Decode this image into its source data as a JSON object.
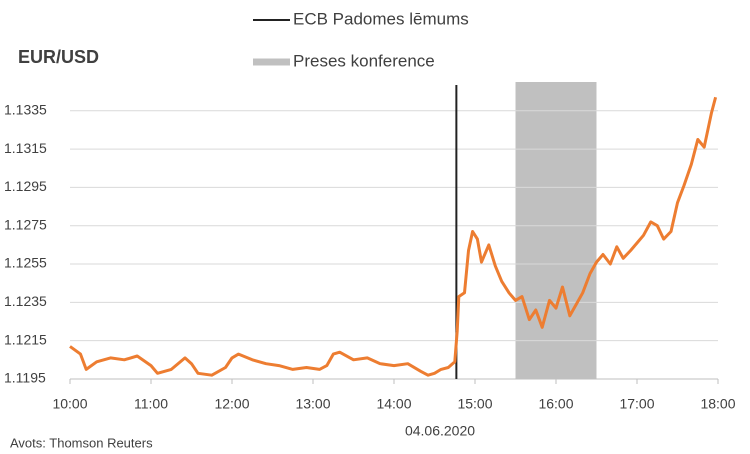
{
  "chart_data": {
    "type": "line",
    "title": "EUR/USD",
    "xlabel": "04.06.2020",
    "source": "Avots: Thomson Reuters",
    "x": [
      10,
      10.13,
      10.2,
      10.33,
      10.5,
      10.67,
      10.83,
      11,
      11.08,
      11.25,
      11.42,
      11.5,
      11.58,
      11.75,
      11.92,
      12,
      12.08,
      12.25,
      12.42,
      12.58,
      12.75,
      12.92,
      13.08,
      13.17,
      13.25,
      13.33,
      13.5,
      13.67,
      13.83,
      14,
      14.17,
      14.33,
      14.42,
      14.5,
      14.58,
      14.67,
      14.75,
      14.78,
      14.8,
      14.87,
      14.92,
      14.97,
      15.03,
      15.08,
      15.17,
      15.25,
      15.33,
      15.42,
      15.5,
      15.58,
      15.67,
      15.75,
      15.83,
      15.92,
      16,
      16.08,
      16.17,
      16.25,
      16.33,
      16.42,
      16.5,
      16.58,
      16.67,
      16.75,
      16.83,
      16.92,
      17,
      17.08,
      17.17,
      17.25,
      17.33,
      17.42,
      17.5,
      17.58,
      17.67,
      17.75,
      17.83,
      17.92,
      17.97
    ],
    "series": [
      {
        "color": "#ed7d31",
        "values": [
          1.1212,
          1.1208,
          1.12,
          1.1204,
          1.1206,
          1.1205,
          1.1207,
          1.1202,
          1.1198,
          1.12,
          1.1206,
          1.1203,
          1.1198,
          1.1197,
          1.1201,
          1.1206,
          1.1208,
          1.1205,
          1.1203,
          1.1202,
          1.12,
          1.1201,
          1.12,
          1.1202,
          1.1208,
          1.1209,
          1.1205,
          1.1206,
          1.1203,
          1.1202,
          1.1203,
          1.1199,
          1.1197,
          1.1198,
          1.12,
          1.1201,
          1.1204,
          1.122,
          1.1238,
          1.124,
          1.1262,
          1.1272,
          1.1268,
          1.1256,
          1.1265,
          1.1254,
          1.1246,
          1.124,
          1.1236,
          1.1238,
          1.1226,
          1.1231,
          1.1222,
          1.1236,
          1.1232,
          1.1243,
          1.1228,
          1.1234,
          1.124,
          1.125,
          1.1256,
          1.126,
          1.1255,
          1.1264,
          1.1258,
          1.1262,
          1.1266,
          1.127,
          1.1277,
          1.1275,
          1.1268,
          1.1272,
          1.1287,
          1.1296,
          1.1307,
          1.132,
          1.1316,
          1.1334,
          1.1342
        ]
      }
    ],
    "xlim": [
      10,
      18
    ],
    "xticks": [
      {
        "value": 10,
        "label": "10:00"
      },
      {
        "value": 11,
        "label": "11:00"
      },
      {
        "value": 12,
        "label": "12:00"
      },
      {
        "value": 13,
        "label": "13:00"
      },
      {
        "value": 14,
        "label": "14:00"
      },
      {
        "value": 15,
        "label": "15:00"
      },
      {
        "value": 16,
        "label": "16:00"
      },
      {
        "value": 17,
        "label": "17:00"
      },
      {
        "value": 18,
        "label": "18:00"
      }
    ],
    "ylim": [
      1.1195,
      1.135
    ],
    "yticks": [
      1.1195,
      1.1215,
      1.1235,
      1.1255,
      1.1275,
      1.1295,
      1.1315,
      1.1335
    ],
    "grid": true,
    "annotations": {
      "vline": {
        "name": "ECB Padomes lēmums",
        "x": 14.77,
        "color": "#222222"
      },
      "band": {
        "name": "Preses konference",
        "x": [
          15.5,
          16.5
        ],
        "color": "#c0c0c0"
      }
    }
  }
}
